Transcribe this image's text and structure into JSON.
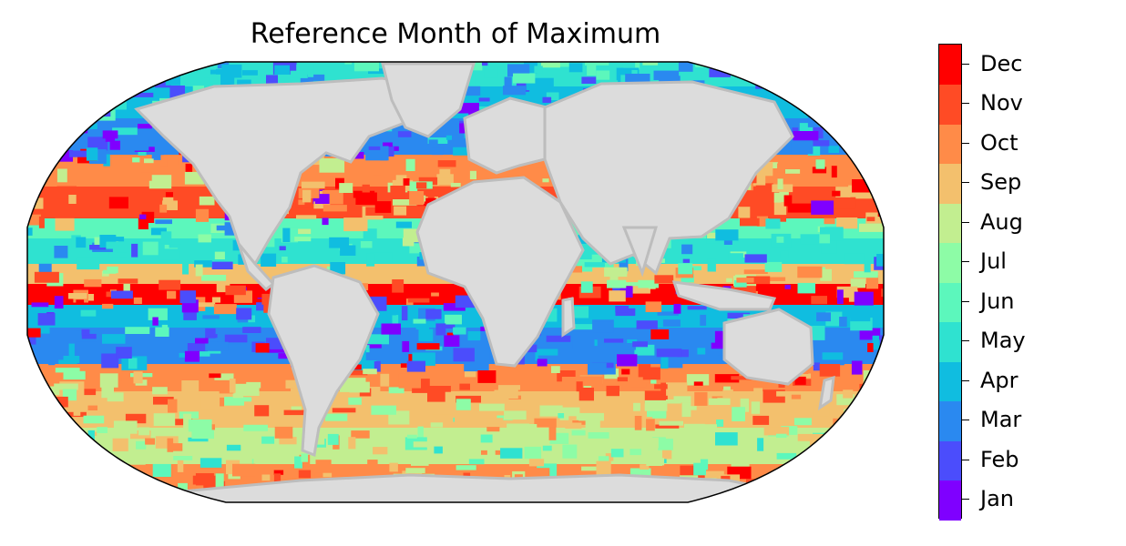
{
  "title": "Reference Month of Maximum",
  "map": {
    "projection": "robinson",
    "land_color": "#dcdcdc",
    "coast_color": "#bdbdbd",
    "border_color": "#000000"
  },
  "colorbar": {
    "months": [
      "Jan",
      "Feb",
      "Mar",
      "Apr",
      "May",
      "Jun",
      "Jul",
      "Aug",
      "Sep",
      "Oct",
      "Nov",
      "Dec"
    ],
    "colors": [
      "#7f00ff",
      "#4b4dfc",
      "#2a89f0",
      "#10bde0",
      "#2fe2d0",
      "#5cf7bc",
      "#8dfca6",
      "#c2ee90",
      "#f3c06d",
      "#ff8b48",
      "#ff4b25",
      "#ff0000"
    ]
  }
}
